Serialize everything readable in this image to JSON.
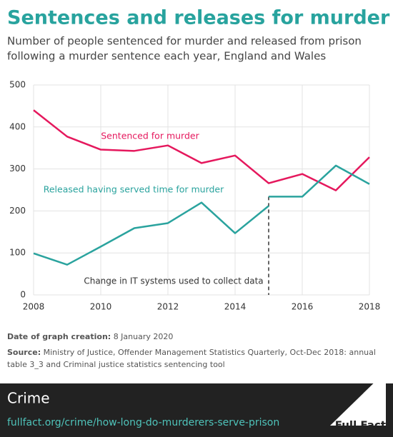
{
  "chart_data": {
    "type": "line",
    "title": "Sentences and releases for murder",
    "subtitle": [
      "Number of people sentenced for murder and released from prison",
      "following a murder sentence each year, England and Wales"
    ],
    "series": [
      {
        "name": "Sentenced for murder",
        "color": "#e5185d",
        "x": [
          2008,
          2009,
          2010,
          2011,
          2012,
          2013,
          2014,
          2015,
          2016,
          2017,
          2018
        ],
        "values": [
          440,
          377,
          346,
          343,
          356,
          314,
          332,
          266,
          288,
          249,
          328
        ]
      },
      {
        "name": "Released having served time for murder",
        "color": "#2aa39e",
        "x": [
          2008,
          2009,
          2010,
          2011,
          2012,
          2013,
          2014,
          2015,
          2015,
          2015,
          2016,
          2017,
          2018
        ],
        "values": [
          99,
          72,
          115,
          159,
          171,
          220,
          147,
          212,
          null,
          234,
          234,
          308,
          264
        ]
      }
    ],
    "annotation": {
      "text": "Change in IT systems used to collect data",
      "x": 2015
    },
    "xlim": [
      2008,
      2018
    ],
    "xticks": [
      2008,
      2010,
      2012,
      2014,
      2016,
      2018
    ],
    "ylim": [
      0,
      500
    ],
    "yticks": [
      0,
      100,
      200,
      300,
      400,
      500
    ],
    "grid": true
  },
  "notes": {
    "date_label": "Date of graph creation:",
    "date": "8 January 2020",
    "source_label": "Source:",
    "source": [
      "Ministry of Justice, Offender Management Statistics Quarterly, Oct-Dec 2018: annual",
      "table 3_3 and Criminal justice statistics sentencing tool"
    ]
  },
  "footer": {
    "topic": "Crime",
    "url": "fullfact.org/crime/how-long-do-murderers-serve-prison",
    "logo": "Full Fact"
  }
}
